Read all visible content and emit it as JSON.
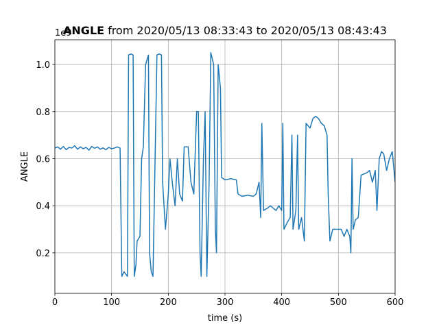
{
  "chart_data": {
    "type": "line",
    "title_bold": "ANGLE",
    "title": "from 2020/05/13 08:33:43 to 2020/05/13 08:43:43",
    "offset_label": "1e9",
    "xlabel": "time (s)",
    "ylabel": "ANGLE",
    "xlim": [
      0,
      600
    ],
    "ylim": [
      0.028,
      1.105
    ],
    "xticks": [
      0,
      100,
      200,
      300,
      400,
      500,
      600
    ],
    "yticks": [
      0.2,
      0.4,
      0.6,
      0.8,
      1.0
    ],
    "grid": true,
    "series": [
      {
        "name": "ANGLE",
        "color": "#1f77b4",
        "x": [
          0,
          5,
          10,
          15,
          20,
          25,
          30,
          35,
          40,
          45,
          50,
          55,
          60,
          65,
          70,
          75,
          80,
          85,
          90,
          95,
          100,
          105,
          110,
          115,
          118,
          122,
          128,
          130,
          134,
          138,
          140,
          143,
          145,
          150,
          153,
          156,
          160,
          165,
          167,
          170,
          173,
          176,
          180,
          184,
          188,
          190,
          195,
          200,
          203,
          207,
          212,
          216,
          220,
          225,
          228,
          235,
          240,
          245,
          250,
          253,
          256,
          258,
          262,
          265,
          268,
          272,
          275,
          280,
          283,
          285,
          288,
          292,
          294,
          300,
          310,
          320,
          323,
          330,
          340,
          350,
          355,
          360,
          363,
          365,
          368,
          375,
          380,
          385,
          390,
          395,
          400,
          402,
          404,
          410,
          415,
          418,
          420,
          425,
          428,
          430,
          435,
          440,
          443,
          450,
          455,
          460,
          465,
          470,
          475,
          480,
          482,
          485,
          490,
          500,
          505,
          510,
          515,
          520,
          522,
          524,
          526,
          530,
          535,
          540,
          550,
          555,
          560,
          565,
          568,
          572,
          576,
          580,
          585,
          590,
          595,
          600
        ],
        "values": [
          0.645,
          0.65,
          0.64,
          0.652,
          0.638,
          0.648,
          0.645,
          0.655,
          0.64,
          0.65,
          0.642,
          0.648,
          0.636,
          0.652,
          0.644,
          0.65,
          0.64,
          0.646,
          0.638,
          0.648,
          0.642,
          0.645,
          0.65,
          0.645,
          0.1,
          0.12,
          0.1,
          1.04,
          1.045,
          1.04,
          0.1,
          0.15,
          0.25,
          0.27,
          0.6,
          0.65,
          1.0,
          1.04,
          0.2,
          0.12,
          0.1,
          0.5,
          1.04,
          1.045,
          1.04,
          0.5,
          0.3,
          0.45,
          0.6,
          0.5,
          0.4,
          0.6,
          0.45,
          0.42,
          0.65,
          0.65,
          0.5,
          0.45,
          0.8,
          0.8,
          0.2,
          0.1,
          0.6,
          0.8,
          0.1,
          0.5,
          1.05,
          1.0,
          0.3,
          0.2,
          1.0,
          0.9,
          0.52,
          0.51,
          0.515,
          0.51,
          0.45,
          0.44,
          0.445,
          0.44,
          0.45,
          0.5,
          0.35,
          0.75,
          0.38,
          0.39,
          0.4,
          0.39,
          0.38,
          0.4,
          0.38,
          0.75,
          0.3,
          0.33,
          0.35,
          0.7,
          0.3,
          0.38,
          0.7,
          0.3,
          0.35,
          0.25,
          0.75,
          0.73,
          0.77,
          0.78,
          0.77,
          0.75,
          0.74,
          0.7,
          0.45,
          0.25,
          0.3,
          0.3,
          0.3,
          0.27,
          0.3,
          0.27,
          0.2,
          0.6,
          0.3,
          0.34,
          0.35,
          0.53,
          0.54,
          0.55,
          0.5,
          0.55,
          0.38,
          0.6,
          0.63,
          0.62,
          0.55,
          0.6,
          0.63,
          0.5
        ]
      }
    ]
  }
}
